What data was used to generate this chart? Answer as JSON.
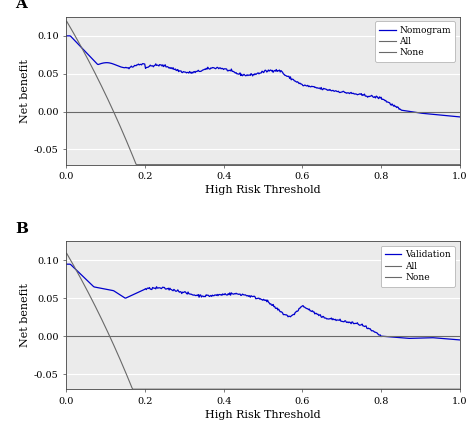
{
  "panel_A": {
    "label": "A",
    "legend_label": "Nomogram",
    "xlabel": "High Risk Threshold",
    "ylabel": "Net benefit",
    "ylim": [
      -0.07,
      0.125
    ],
    "yticks": [
      -0.05,
      0.0,
      0.05,
      0.1
    ],
    "xlim": [
      0.0,
      1.0
    ],
    "xticks": [
      0.0,
      0.2,
      0.4,
      0.6,
      0.8,
      1.0
    ],
    "nomogram_color": "#0000CD",
    "all_color": "#696969",
    "none_color": "#696969",
    "bg_color": "#EBEBEB"
  },
  "panel_B": {
    "label": "B",
    "legend_label": "Validation",
    "xlabel": "High Risk Threshold",
    "ylabel": "Net benefit",
    "ylim": [
      -0.07,
      0.125
    ],
    "yticks": [
      -0.05,
      0.0,
      0.05,
      0.1
    ],
    "xlim": [
      0.0,
      1.0
    ],
    "xticks": [
      0.0,
      0.2,
      0.4,
      0.6,
      0.8,
      1.0
    ],
    "nomogram_color": "#0000CD",
    "all_color": "#696969",
    "none_color": "#696969",
    "bg_color": "#EBEBEB"
  }
}
